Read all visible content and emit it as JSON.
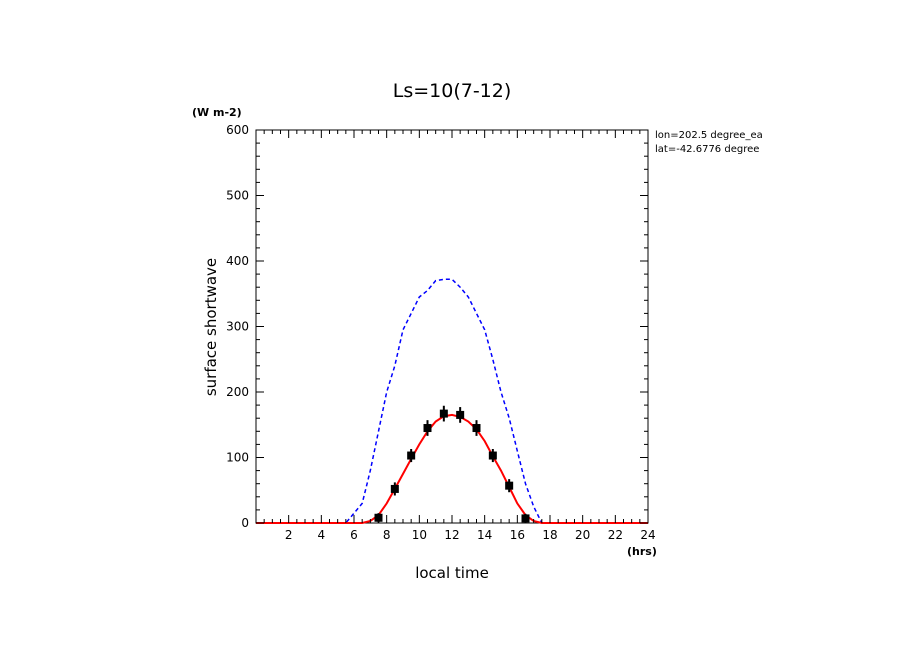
{
  "chart_data": {
    "type": "line",
    "title": "Ls=10(7-12)",
    "xlabel": "local time",
    "ylabel": "surface shortwave",
    "x_unit": "(hrs)",
    "y_unit": "(W m-2)",
    "xlim": [
      0,
      24
    ],
    "ylim": [
      0,
      600
    ],
    "x_tick_labels": [
      "2",
      "4",
      "6",
      "8",
      "10",
      "12",
      "14",
      "16",
      "18",
      "20",
      "22",
      "24"
    ],
    "y_tick_labels": [
      "0",
      "100",
      "200",
      "300",
      "400",
      "500",
      "600"
    ],
    "annotations": [
      "lon=202.5 degree_ea",
      "lat=-42.6776 degree"
    ],
    "grid": false,
    "series": [
      {
        "style": "dashed",
        "color": "#0000ff",
        "x": [
          0,
          1,
          2,
          3,
          4,
          5,
          5.5,
          6,
          6.5,
          7,
          7.5,
          8,
          8.5,
          9,
          9.5,
          10,
          10.5,
          11,
          11.5,
          12,
          12.5,
          13,
          13.5,
          14,
          14.5,
          15,
          15.5,
          16,
          16.5,
          17,
          17.5,
          18,
          18.5,
          19,
          20,
          21,
          22,
          23,
          24
        ],
        "y": [
          0,
          0,
          0,
          0,
          0,
          0,
          0,
          15,
          30,
          80,
          140,
          200,
          240,
          295,
          320,
          345,
          355,
          370,
          372,
          372,
          360,
          345,
          320,
          295,
          250,
          200,
          160,
          110,
          60,
          25,
          0,
          0,
          0,
          0,
          0,
          0,
          0,
          0,
          0
        ]
      },
      {
        "style": "solid",
        "color": "#ff0000",
        "x": [
          0,
          1,
          2,
          3,
          4,
          5,
          6,
          6.5,
          7,
          7.5,
          8,
          8.5,
          9,
          9.5,
          10,
          10.5,
          11,
          11.5,
          12,
          12.5,
          13,
          13.5,
          14,
          14.5,
          15,
          15.5,
          16,
          16.5,
          17,
          17.5,
          18,
          19,
          20,
          21,
          22,
          23,
          24
        ],
        "y": [
          0,
          0,
          0,
          0,
          0,
          0,
          0,
          0,
          3,
          12,
          30,
          52,
          75,
          98,
          120,
          140,
          155,
          163,
          165,
          162,
          155,
          143,
          125,
          102,
          80,
          55,
          30,
          12,
          3,
          0,
          0,
          0,
          0,
          0,
          0,
          0,
          0
        ]
      },
      {
        "style": "markers",
        "color": "#000000",
        "x": [
          7.5,
          8.5,
          9.5,
          10.5,
          11.5,
          12.5,
          13.5,
          14.5,
          15.5,
          16.5
        ],
        "y": [
          8,
          52,
          103,
          145,
          167,
          165,
          145,
          103,
          57,
          7
        ],
        "error": [
          7,
          10,
          10,
          12,
          12,
          12,
          12,
          10,
          10,
          7
        ]
      }
    ]
  }
}
